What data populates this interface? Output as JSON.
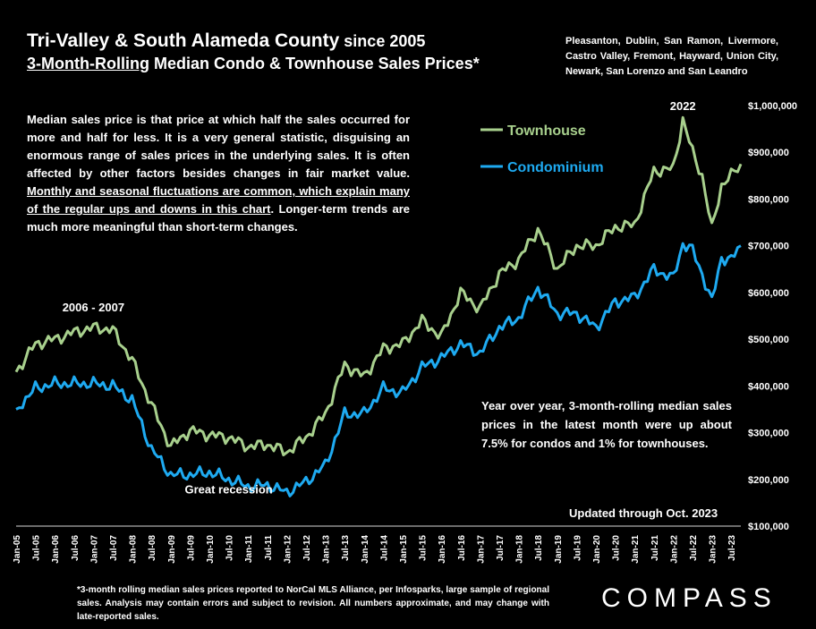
{
  "title": {
    "line1_main": "Tri-Valley & South Alameda County",
    "line1_suffix": " since 2005",
    "line2_underlined": "3-Month-Rolling",
    "line2_rest": " Median Condo & Townhouse Sales Prices*"
  },
  "region": "Pleasanton, Dublin, San Ramon, Livermore, Castro Valley, Fremont, Hayward, Union City, Newark, San Lorenzo and San Leandro",
  "description": {
    "part1": "Median sales price is that price at which half the sales occurred for more and half for less. It is a very general statistic, disguising an enormous range of sales prices in the underlying sales. It is often affected by other factors besides changes in fair market value. ",
    "part2_underlined": "Monthly and seasonal fluctuations are common, which explain many of the regular ups and downs in this chart",
    "part3": ". Longer-term trends are much more meaningful than short-term changes."
  },
  "yoy_note": "Year over year, 3-month-rolling median sales prices in the latest month were up about 7.5% for condos and 1% for townhouses.",
  "updated": "Updated through Oct. 2023",
  "footnote": "*3-month rolling median sales prices reported to NorCal MLS Alliance, per Infosparks, large sample of regional sales. Analysis may contain errors and subject to revision. All numbers approximate, and may change with late-reported sales.",
  "logo": "COMPASS",
  "chart_data": {
    "type": "line",
    "ylim": [
      100000,
      1000000
    ],
    "y_ticks": [
      "$100,000",
      "$200,000",
      "$300,000",
      "$400,000",
      "$500,000",
      "$600,000",
      "$700,000",
      "$800,000",
      "$900,000",
      "$1,000,000"
    ],
    "y_tick_values": [
      100000,
      200000,
      300000,
      400000,
      500000,
      600000,
      700000,
      800000,
      900000,
      1000000
    ],
    "x_ticks": [
      "Jan-05",
      "Jul-05",
      "Jan-06",
      "Jul-06",
      "Jan-07",
      "Jul-07",
      "Jan-08",
      "Jul-08",
      "Jan-09",
      "Jul-09",
      "Jan-10",
      "Jul-10",
      "Jan-11",
      "Jul-11",
      "Jan-12",
      "Jul-12",
      "Jan-13",
      "Jul-13",
      "Jan-14",
      "Jul-14",
      "Jan-15",
      "Jul-15",
      "Jan-16",
      "Jul-16",
      "Jan-17",
      "Jul-17",
      "Jan-18",
      "Jul-18",
      "Jan-19",
      "Jul-19",
      "Jan-20",
      "Jul-20",
      "Jan-21",
      "Jul-21",
      "Jan-22",
      "Jul-22",
      "Jan-23",
      "Jul-23"
    ],
    "x_range": [
      "Jan-05",
      "Oct-23"
    ],
    "legend_position": "top-center",
    "grid": false,
    "annotations": [
      {
        "text": "2006 - 2007",
        "x": "Jan-07",
        "y": 560000
      },
      {
        "text": "Great recession",
        "x": "Jul-10",
        "y": 170000
      },
      {
        "text": "2022",
        "x": "Apr-22",
        "y": 990000
      }
    ],
    "series": [
      {
        "name": "Townhouse",
        "color": "#a8d08d",
        "anchors": [
          [
            "Jan-05",
            430000
          ],
          [
            "Jul-05",
            490000
          ],
          [
            "Jan-06",
            500000
          ],
          [
            "Jul-06",
            515000
          ],
          [
            "Jan-07",
            525000
          ],
          [
            "Jul-07",
            520000
          ],
          [
            "Jan-08",
            455000
          ],
          [
            "Jul-08",
            360000
          ],
          [
            "Jan-09",
            270000
          ],
          [
            "Jul-09",
            305000
          ],
          [
            "Jan-10",
            295000
          ],
          [
            "Jul-10",
            290000
          ],
          [
            "Jan-11",
            270000
          ],
          [
            "Jul-11",
            275000
          ],
          [
            "Jan-12",
            258000
          ],
          [
            "Jul-12",
            290000
          ],
          [
            "Jan-13",
            340000
          ],
          [
            "Jul-13",
            445000
          ],
          [
            "Jan-14",
            420000
          ],
          [
            "Jul-14",
            480000
          ],
          [
            "Jan-15",
            490000
          ],
          [
            "Jul-15",
            540000
          ],
          [
            "Jan-16",
            505000
          ],
          [
            "Jul-16",
            600000
          ],
          [
            "Jan-17",
            565000
          ],
          [
            "Jul-17",
            640000
          ],
          [
            "Jan-18",
            670000
          ],
          [
            "Jul-18",
            735000
          ],
          [
            "Jan-19",
            650000
          ],
          [
            "Jul-19",
            700000
          ],
          [
            "Jan-20",
            700000
          ],
          [
            "Jul-20",
            740000
          ],
          [
            "Jan-21",
            745000
          ],
          [
            "Jul-21",
            860000
          ],
          [
            "Jan-22",
            865000
          ],
          [
            "Apr-22",
            970000
          ],
          [
            "Jul-22",
            900000
          ],
          [
            "Oct-22",
            850000
          ],
          [
            "Jan-23",
            735000
          ],
          [
            "Apr-23",
            830000
          ],
          [
            "Jul-23",
            850000
          ],
          [
            "Oct-23",
            875000
          ]
        ]
      },
      {
        "name": "Condominium",
        "color": "#1eaaf1",
        "anchors": [
          [
            "Jan-05",
            350000
          ],
          [
            "Jul-05",
            395000
          ],
          [
            "Jan-06",
            405000
          ],
          [
            "Jul-06",
            405000
          ],
          [
            "Jan-07",
            405000
          ],
          [
            "Jul-07",
            400000
          ],
          [
            "Jan-08",
            370000
          ],
          [
            "Jul-08",
            265000
          ],
          [
            "Jan-09",
            210000
          ],
          [
            "Jul-09",
            210000
          ],
          [
            "Jan-10",
            215000
          ],
          [
            "Jul-10",
            200000
          ],
          [
            "Jan-11",
            185000
          ],
          [
            "Jul-11",
            188000
          ],
          [
            "Jan-12",
            172000
          ],
          [
            "Jul-12",
            195000
          ],
          [
            "Jan-13",
            230000
          ],
          [
            "Jul-13",
            340000
          ],
          [
            "Jan-14",
            340000
          ],
          [
            "Jul-14",
            395000
          ],
          [
            "Jan-15",
            385000
          ],
          [
            "Jul-15",
            440000
          ],
          [
            "Jan-16",
            460000
          ],
          [
            "Jul-16",
            490000
          ],
          [
            "Jan-17",
            470000
          ],
          [
            "Jul-17",
            525000
          ],
          [
            "Jan-18",
            545000
          ],
          [
            "Jul-18",
            610000
          ],
          [
            "Jan-19",
            555000
          ],
          [
            "Jul-19",
            555000
          ],
          [
            "Jan-20",
            525000
          ],
          [
            "Jul-20",
            580000
          ],
          [
            "Jan-21",
            590000
          ],
          [
            "Jul-21",
            650000
          ],
          [
            "Jan-22",
            630000
          ],
          [
            "Apr-22",
            705000
          ],
          [
            "Jul-22",
            690000
          ],
          [
            "Oct-22",
            640000
          ],
          [
            "Jan-23",
            580000
          ],
          [
            "Apr-23",
            675000
          ],
          [
            "Jul-23",
            670000
          ],
          [
            "Oct-23",
            700000
          ]
        ]
      }
    ]
  }
}
